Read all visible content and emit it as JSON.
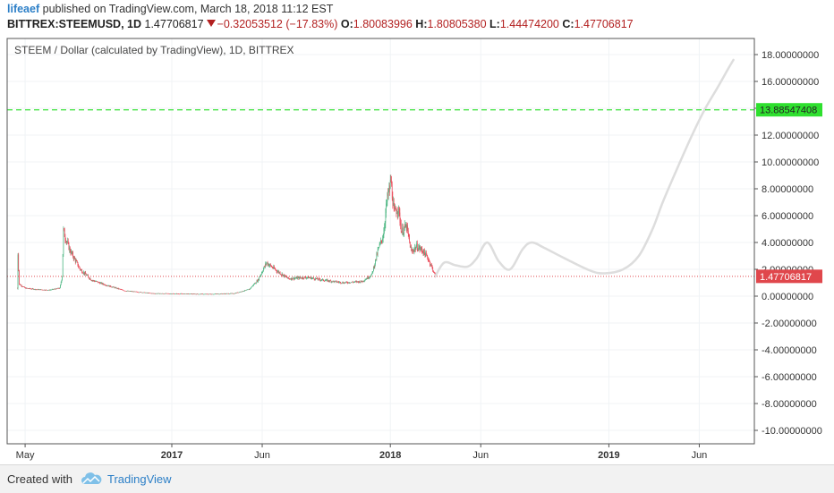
{
  "header": {
    "author": "lifeaef",
    "published": "published on TradingView.com, March 18, 2018 11:12 EST",
    "symbol": "BITTREX:STEEMUSD, 1D",
    "last": "1.47706817",
    "change": "−0.32053512 (−17.83%)",
    "o_label": "O:",
    "o": "1.80083996",
    "h_label": "H:",
    "h": "1.80805380",
    "l_label": "L:",
    "l": "1.44474200",
    "c_label": "C:",
    "c": "1.47706817"
  },
  "footer": {
    "created_with": "Created with",
    "brand": "TradingView"
  },
  "colors": {
    "up": "#53b987",
    "down": "#eb4d5c",
    "price_line": "#e0474c",
    "target_line": "#3fe33f",
    "projection": "#dddddd",
    "axis": "#555555"
  },
  "chart_data": {
    "type": "candlestick",
    "title": "STEEM / Dollar (calculated by TradingView), 1D, BITTREX",
    "x_ticks": [
      "May",
      "2017",
      "Jun",
      "2018",
      "Jun",
      "2019",
      "Jun"
    ],
    "y_ticks": [
      "18.00000000",
      "16.00000000",
      "14.00000000",
      "12.00000000",
      "10.00000000",
      "8.00000000",
      "6.00000000",
      "4.00000000",
      "2.00000000",
      "0.00000000",
      "-2.00000000",
      "-4.00000000",
      "-6.00000000",
      "-8.00000000",
      "-10.00000000"
    ],
    "ylim": [
      -11,
      19.2
    ],
    "last_price": {
      "value": 1.47706817,
      "label": "1.47706817"
    },
    "target_level": {
      "value": 13.88547408,
      "label": "13.88547408"
    },
    "price_path": [
      [
        "2016-04-18",
        0.6
      ],
      [
        "2016-04-19",
        3.2
      ],
      [
        "2016-04-21",
        0.9
      ],
      [
        "2016-05-01",
        0.6
      ],
      [
        "2016-05-20",
        0.5
      ],
      [
        "2016-06-10",
        0.45
      ],
      [
        "2016-06-28",
        0.6
      ],
      [
        "2016-07-02",
        1.5
      ],
      [
        "2016-07-04",
        4.9
      ],
      [
        "2016-07-07",
        4.4
      ],
      [
        "2016-07-15",
        3.4
      ],
      [
        "2016-08-01",
        2.0
      ],
      [
        "2016-08-20",
        1.2
      ],
      [
        "2016-09-15",
        0.8
      ],
      [
        "2016-10-15",
        0.4
      ],
      [
        "2016-12-01",
        0.2
      ],
      [
        "2017-03-01",
        0.15
      ],
      [
        "2017-04-15",
        0.2
      ],
      [
        "2017-05-10",
        0.5
      ],
      [
        "2017-05-25",
        1.2
      ],
      [
        "2017-06-08",
        2.5
      ],
      [
        "2017-06-25",
        1.9
      ],
      [
        "2017-07-15",
        1.3
      ],
      [
        "2017-08-15",
        1.4
      ],
      [
        "2017-09-10",
        1.2
      ],
      [
        "2017-10-15",
        1.0
      ],
      [
        "2017-11-15",
        1.1
      ],
      [
        "2017-12-01",
        1.6
      ],
      [
        "2017-12-12",
        3.5
      ],
      [
        "2017-12-20",
        4.5
      ],
      [
        "2017-12-26",
        7.0
      ],
      [
        "2018-01-02",
        8.6
      ],
      [
        "2018-01-07",
        6.2
      ],
      [
        "2018-01-14",
        6.6
      ],
      [
        "2018-01-20",
        4.8
      ],
      [
        "2018-01-28",
        5.2
      ],
      [
        "2018-02-05",
        3.3
      ],
      [
        "2018-02-14",
        3.7
      ],
      [
        "2018-02-24",
        3.4
      ],
      [
        "2018-03-05",
        2.8
      ],
      [
        "2018-03-12",
        2.1
      ],
      [
        "2018-03-17",
        1.48
      ]
    ],
    "projection": [
      [
        "2018-03-17",
        1.48
      ],
      [
        "2018-04-01",
        2.5
      ],
      [
        "2018-04-20",
        2.3
      ],
      [
        "2018-05-10",
        2.2
      ],
      [
        "2018-05-25",
        2.8
      ],
      [
        "2018-06-12",
        4.0
      ],
      [
        "2018-07-01",
        2.6
      ],
      [
        "2018-07-20",
        2.0
      ],
      [
        "2018-08-10",
        3.5
      ],
      [
        "2018-08-25",
        4.0
      ],
      [
        "2018-09-15",
        3.6
      ],
      [
        "2018-10-20",
        2.8
      ],
      [
        "2018-12-01",
        1.9
      ],
      [
        "2018-12-25",
        1.7
      ],
      [
        "2019-01-25",
        2.0
      ],
      [
        "2019-02-20",
        3.0
      ],
      [
        "2019-03-15",
        5.0
      ],
      [
        "2019-04-01",
        7.0
      ],
      [
        "2019-04-25",
        9.5
      ],
      [
        "2019-05-20",
        12.0
      ],
      [
        "2019-06-10",
        13.9
      ],
      [
        "2019-07-01",
        15.5
      ],
      [
        "2019-07-20",
        17.0
      ],
      [
        "2019-07-28",
        17.6
      ]
    ]
  }
}
